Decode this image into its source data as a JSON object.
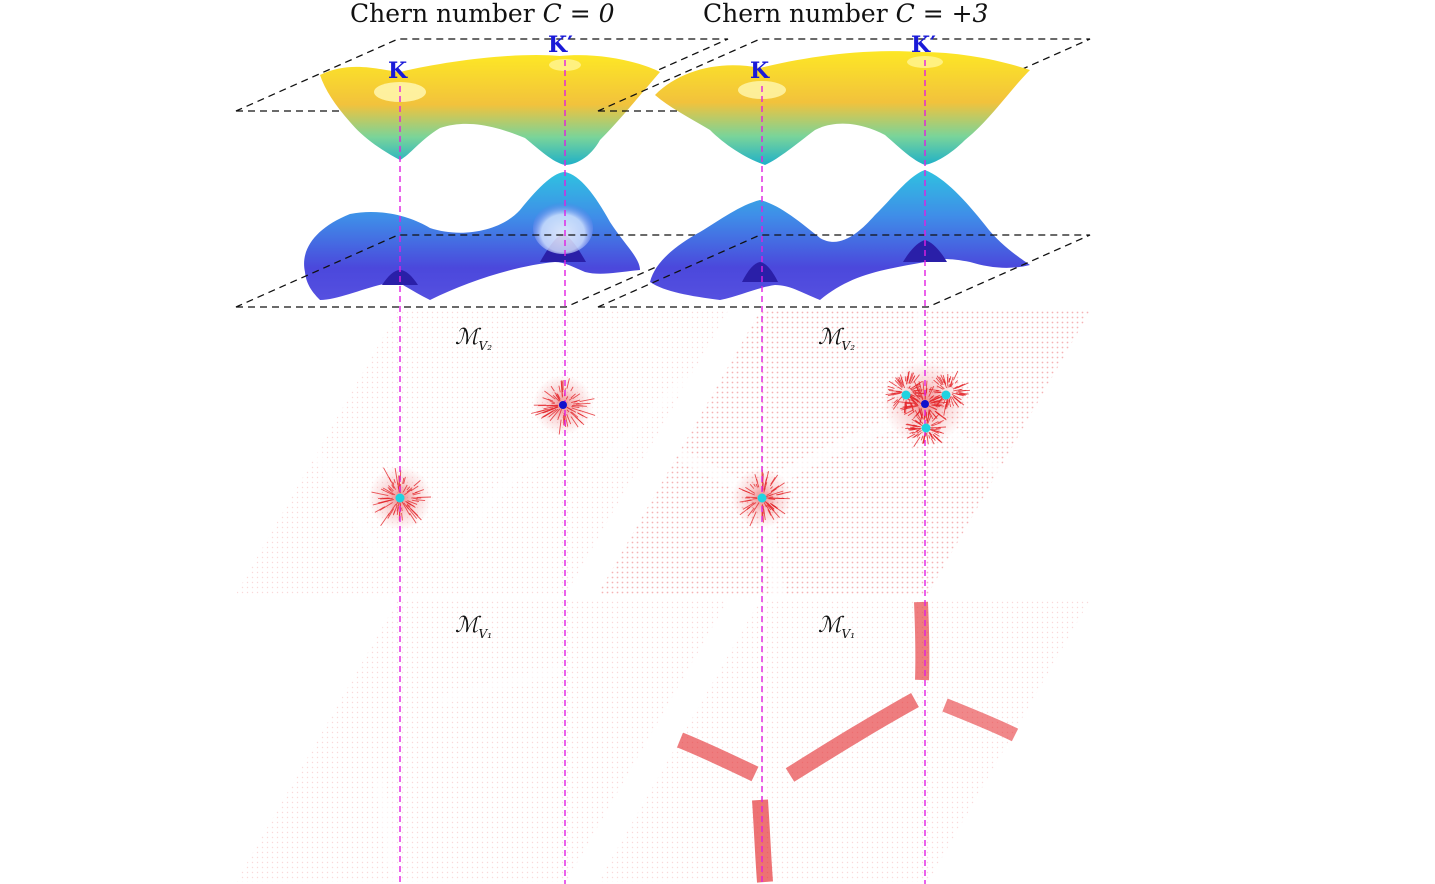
{
  "panels": [
    {
      "title_prefix": "Chern number ",
      "title_math": "C = 0",
      "label_K": "K",
      "label_Kp": "K′",
      "map_upper": {
        "symbol": "ℳ",
        "sub": "V₂"
      },
      "map_lower": {
        "symbol": "ℳ",
        "sub": "V₁"
      }
    },
    {
      "title_prefix": "Chern number ",
      "title_math": "C = +3",
      "label_K": "K",
      "label_Kp": "K′",
      "map_upper": {
        "symbol": "ℳ",
        "sub": "V₂"
      },
      "map_lower": {
        "symbol": "ℳ",
        "sub": "V₁"
      }
    }
  ],
  "colors": {
    "guide": "#e020e0",
    "plane": "#111111",
    "texture": "#e3262a",
    "cyan_dot": "#1fd3e0",
    "blue_dot": "#1111cc",
    "upper_band": [
      "#fde725",
      "#f6c93a",
      "#5fd0b0",
      "#24b8c8"
    ],
    "lower_band": [
      "#34b9e0",
      "#4a7ae6",
      "#4a43d8",
      "#2c22b8"
    ]
  }
}
